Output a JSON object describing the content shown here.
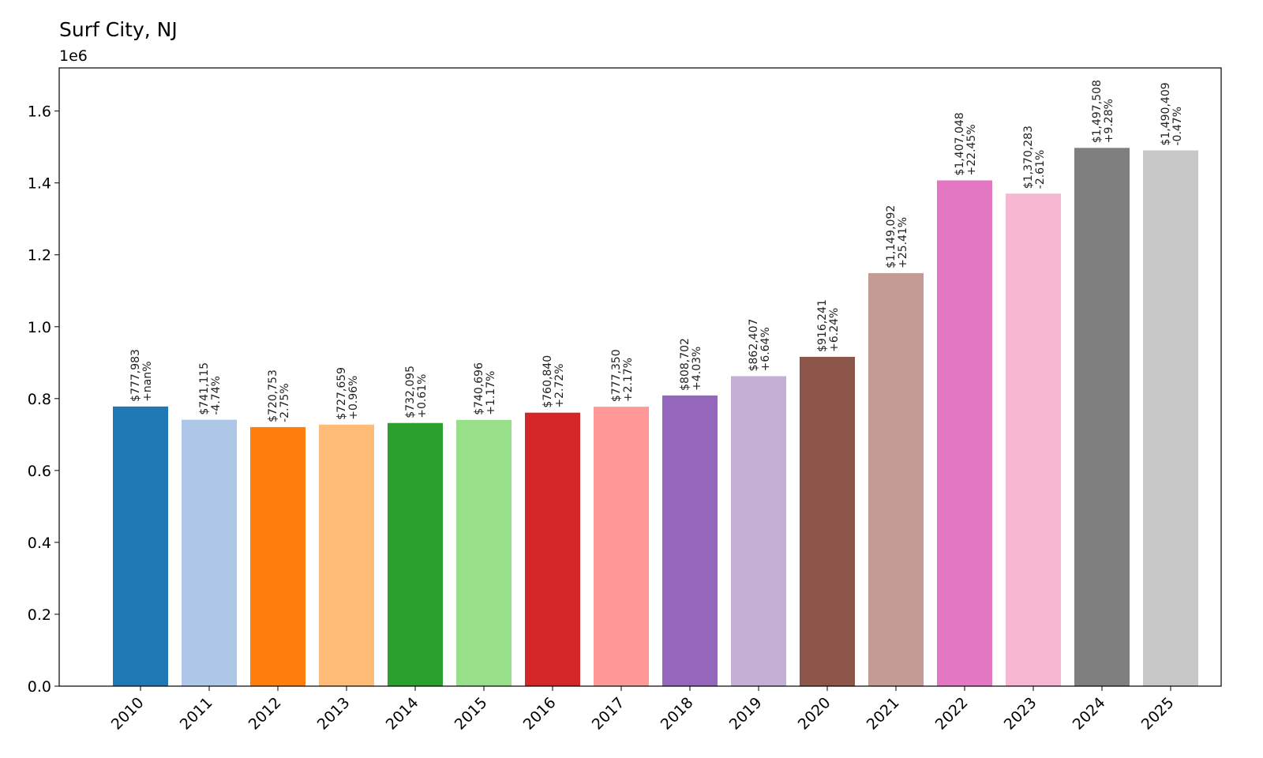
{
  "chart_data": {
    "type": "bar",
    "title": "Surf City, NJ",
    "axis_offset_label": "1e6",
    "xlabel": "",
    "ylabel": "",
    "ylim": [
      0,
      1720000
    ],
    "y_ticks": [
      0,
      200000,
      400000,
      600000,
      800000,
      1000000,
      1200000,
      1400000,
      1600000
    ],
    "y_tick_labels": [
      "0.0",
      "0.2",
      "0.4",
      "0.6",
      "0.8",
      "1.0",
      "1.2",
      "1.4",
      "1.6"
    ],
    "grid": false,
    "categories": [
      "2010",
      "2011",
      "2012",
      "2013",
      "2014",
      "2015",
      "2016",
      "2017",
      "2018",
      "2019",
      "2020",
      "2021",
      "2022",
      "2023",
      "2024",
      "2025"
    ],
    "values": [
      777983,
      741115,
      720753,
      727659,
      732095,
      740696,
      760840,
      777350,
      808702,
      862407,
      916241,
      1149092,
      1407048,
      1370283,
      1497508,
      1490409
    ],
    "value_labels": [
      "$777,983",
      "$741,115",
      "$720,753",
      "$727,659",
      "$732,095",
      "$740,696",
      "$760,840",
      "$777,350",
      "$808,702",
      "$862,407",
      "$916,241",
      "$1,149,092",
      "$1,407,048",
      "$1,370,283",
      "$1,497,508",
      "$1,490,409"
    ],
    "change_labels": [
      "+nan%",
      "-4.74%",
      "-2.75%",
      "+0.96%",
      "+0.61%",
      "+1.17%",
      "+2.72%",
      "+2.17%",
      "+4.03%",
      "+6.64%",
      "+6.24%",
      "+25.41%",
      "+22.45%",
      "-2.61%",
      "+9.28%",
      "-0.47%"
    ],
    "colors": [
      "#1f77b4",
      "#aec7e8",
      "#ff7f0e",
      "#ffbb78",
      "#2ca02c",
      "#98df8a",
      "#d62728",
      "#ff9896",
      "#9467bd",
      "#c5b0d5",
      "#8c564b",
      "#c49c94",
      "#e377c2",
      "#f7b6d2",
      "#7f7f7f",
      "#c7c7c7"
    ]
  }
}
